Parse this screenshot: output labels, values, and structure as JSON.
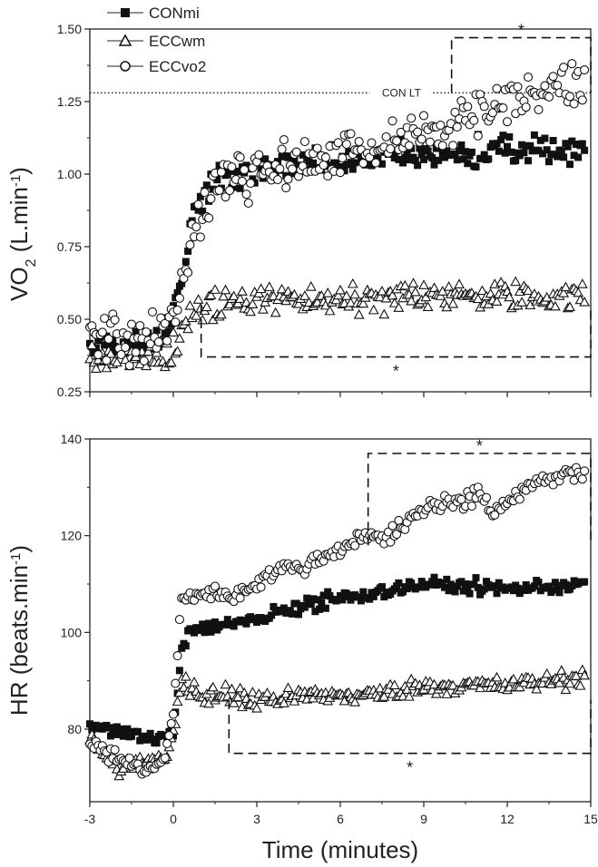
{
  "chart_data": [
    {
      "type": "scatter",
      "panel": "top",
      "ylabel_main": "VO",
      "ylabel_sub": "2",
      "ylabel_rest": " (L.min",
      "ylabel_sup": "-1",
      "ylabel_end": ")",
      "xlim": [
        -3,
        15
      ],
      "ylim": [
        0.25,
        1.5
      ],
      "yticks": [
        "0.25",
        "0.50",
        "0.75",
        "1.00",
        "1.25",
        "1.50"
      ],
      "ytick_values": [
        0.25,
        0.5,
        0.75,
        1.0,
        1.25,
        1.5
      ],
      "xticks": [
        -3,
        0,
        3,
        6,
        9,
        12,
        15
      ],
      "reference_line": {
        "label": "CON LT",
        "y": 1.28
      },
      "significance": [
        {
          "label": "*",
          "x_range": [
            10,
            15
          ],
          "y_from": 1.28,
          "y_to": 1.47,
          "placement": "above"
        },
        {
          "label": "*",
          "x_range": [
            1,
            15
          ],
          "y_from": 0.55,
          "y_to": 0.37,
          "placement": "below"
        }
      ],
      "series": [
        {
          "name": "CONmi",
          "marker": "filled-square",
          "knots": [
            [
              -3,
              0.4
            ],
            [
              -1,
              0.42
            ],
            [
              -0.2,
              0.47
            ],
            [
              0.3,
              0.62
            ],
            [
              0.7,
              0.85
            ],
            [
              1.2,
              0.95
            ],
            [
              2,
              1.0
            ],
            [
              4,
              1.03
            ],
            [
              7,
              1.05
            ],
            [
              10,
              1.07
            ],
            [
              15,
              1.09
            ]
          ],
          "noise": 0.025
        },
        {
          "name": "ECCwm",
          "marker": "open-triangle",
          "knots": [
            [
              -3,
              0.37
            ],
            [
              -1,
              0.36
            ],
            [
              -0.2,
              0.38
            ],
            [
              0.5,
              0.48
            ],
            [
              1,
              0.53
            ],
            [
              2,
              0.56
            ],
            [
              5,
              0.57
            ],
            [
              10,
              0.58
            ],
            [
              15,
              0.58
            ]
          ],
          "noise": 0.025
        },
        {
          "name": "ECCvo2",
          "marker": "open-circle",
          "knots": [
            [
              -3,
              0.46
            ],
            [
              -1,
              0.42
            ],
            [
              -0.2,
              0.45
            ],
            [
              0.3,
              0.6
            ],
            [
              0.7,
              0.8
            ],
            [
              1.2,
              0.93
            ],
            [
              2,
              0.99
            ],
            [
              4,
              1.02
            ],
            [
              7,
              1.08
            ],
            [
              10,
              1.18
            ],
            [
              13,
              1.28
            ],
            [
              15,
              1.32
            ]
          ],
          "noise": 0.04
        }
      ]
    },
    {
      "type": "scatter",
      "panel": "bottom",
      "ylabel_main": "HR (beats.min",
      "ylabel_sup": "-1",
      "ylabel_end": ")",
      "xlabel": "Time (minutes)",
      "xlim": [
        -3,
        15
      ],
      "ylim": [
        65,
        140
      ],
      "yticks": [
        "80",
        "100",
        "120",
        "140"
      ],
      "ytick_values": [
        80,
        100,
        120,
        140
      ],
      "xticks": [
        "-3",
        "0",
        "3",
        "6",
        "9",
        "12",
        "15"
      ],
      "xtick_values": [
        -3,
        0,
        3,
        6,
        9,
        12,
        15
      ],
      "significance": [
        {
          "label": "*",
          "x_range": [
            7,
            15
          ],
          "y_from": 118,
          "y_to": 137,
          "placement": "above"
        },
        {
          "label": "*",
          "x_range": [
            2,
            15
          ],
          "y_from": 86,
          "y_to": 75,
          "placement": "below"
        }
      ],
      "series": [
        {
          "name": "CONmi",
          "marker": "filled-square",
          "knots": [
            [
              -3,
              80.5
            ],
            [
              -1.5,
              79
            ],
            [
              -0.5,
              78
            ],
            [
              0,
              79
            ],
            [
              0.3,
              97
            ],
            [
              0.7,
              100
            ],
            [
              1,
              101
            ],
            [
              3,
              103
            ],
            [
              5,
              106
            ],
            [
              7,
              108
            ],
            [
              9,
              110
            ],
            [
              12,
              109
            ],
            [
              15,
              110
            ]
          ],
          "noise": 0.7
        },
        {
          "name": "ECCwm",
          "marker": "open-triangle",
          "knots": [
            [
              -3,
              78
            ],
            [
              -2,
              72
            ],
            [
              -1,
              73
            ],
            [
              -0.3,
              74
            ],
            [
              0,
              80
            ],
            [
              0.3,
              90
            ],
            [
              1,
              87
            ],
            [
              3,
              86
            ],
            [
              5,
              87
            ],
            [
              7,
              87
            ],
            [
              9,
              89
            ],
            [
              12,
              89
            ],
            [
              15,
              91
            ]
          ],
          "noise": 0.9
        },
        {
          "name": "ECCvo2",
          "marker": "open-circle",
          "knots": [
            [
              -3,
              77
            ],
            [
              -2,
              73
            ],
            [
              -1,
              72
            ],
            [
              -0.3,
              74
            ],
            [
              0,
              84
            ],
            [
              0.3,
              107
            ],
            [
              1,
              107
            ],
            [
              3,
              110
            ],
            [
              5,
              115
            ],
            [
              7,
              119
            ],
            [
              8,
              121
            ],
            [
              9,
              126
            ],
            [
              10,
              126
            ],
            [
              11,
              129
            ],
            [
              11.5,
              125
            ],
            [
              12,
              127
            ],
            [
              13,
              130
            ],
            [
              14,
              134
            ],
            [
              14.6,
              133
            ]
          ],
          "noise": 0.8
        }
      ]
    }
  ],
  "legend": [
    {
      "marker": "filled-square",
      "label": "CONmi"
    },
    {
      "marker": "open-triangle",
      "label": "ECCwm"
    },
    {
      "marker": "open-circle",
      "label": "ECCvo2"
    }
  ]
}
